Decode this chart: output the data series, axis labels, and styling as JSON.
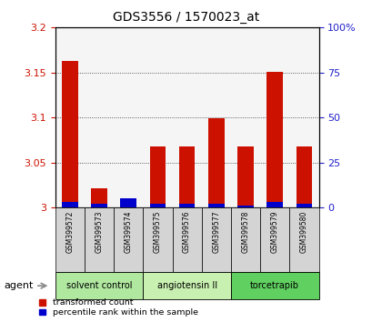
{
  "title": "GDS3556 / 1570023_at",
  "samples": [
    "GSM399572",
    "GSM399573",
    "GSM399574",
    "GSM399575",
    "GSM399576",
    "GSM399577",
    "GSM399578",
    "GSM399579",
    "GSM399580"
  ],
  "transformed_count": [
    3.163,
    3.022,
    3.0,
    3.068,
    3.068,
    3.099,
    3.068,
    3.151,
    3.068
  ],
  "percentile_rank": [
    3,
    2,
    5,
    2,
    2,
    2,
    1,
    3,
    2
  ],
  "ylim_left": [
    3.0,
    3.2
  ],
  "ylim_right": [
    0,
    100
  ],
  "yticks_left": [
    3.0,
    3.05,
    3.1,
    3.15,
    3.2
  ],
  "yticks_left_labels": [
    "3",
    "3.05",
    "3.1",
    "3.15",
    "3.2"
  ],
  "yticks_right": [
    0,
    25,
    50,
    75,
    100
  ],
  "yticks_right_labels": [
    "0",
    "25",
    "50",
    "75",
    "100%"
  ],
  "groups": [
    {
      "label": "solvent control",
      "start": 0,
      "end": 2,
      "color": "#b0e8a0"
    },
    {
      "label": "angiotensin II",
      "start": 3,
      "end": 5,
      "color": "#c8f0b0"
    },
    {
      "label": "torcetrapib",
      "start": 6,
      "end": 8,
      "color": "#60d060"
    }
  ],
  "bar_color_red": "#cc1100",
  "bar_color_blue": "#0000cc",
  "bar_width": 0.55,
  "background_color": "#ffffff",
  "plot_bg_color": "#f5f5f5",
  "left_tick_color": "#cc1100",
  "right_tick_color": "#2222cc",
  "agent_label": "agent",
  "legend_red_label": "transformed count",
  "legend_blue_label": "percentile rank within the sample",
  "sample_box_color": "#d4d4d4",
  "grid_color": "#333333"
}
